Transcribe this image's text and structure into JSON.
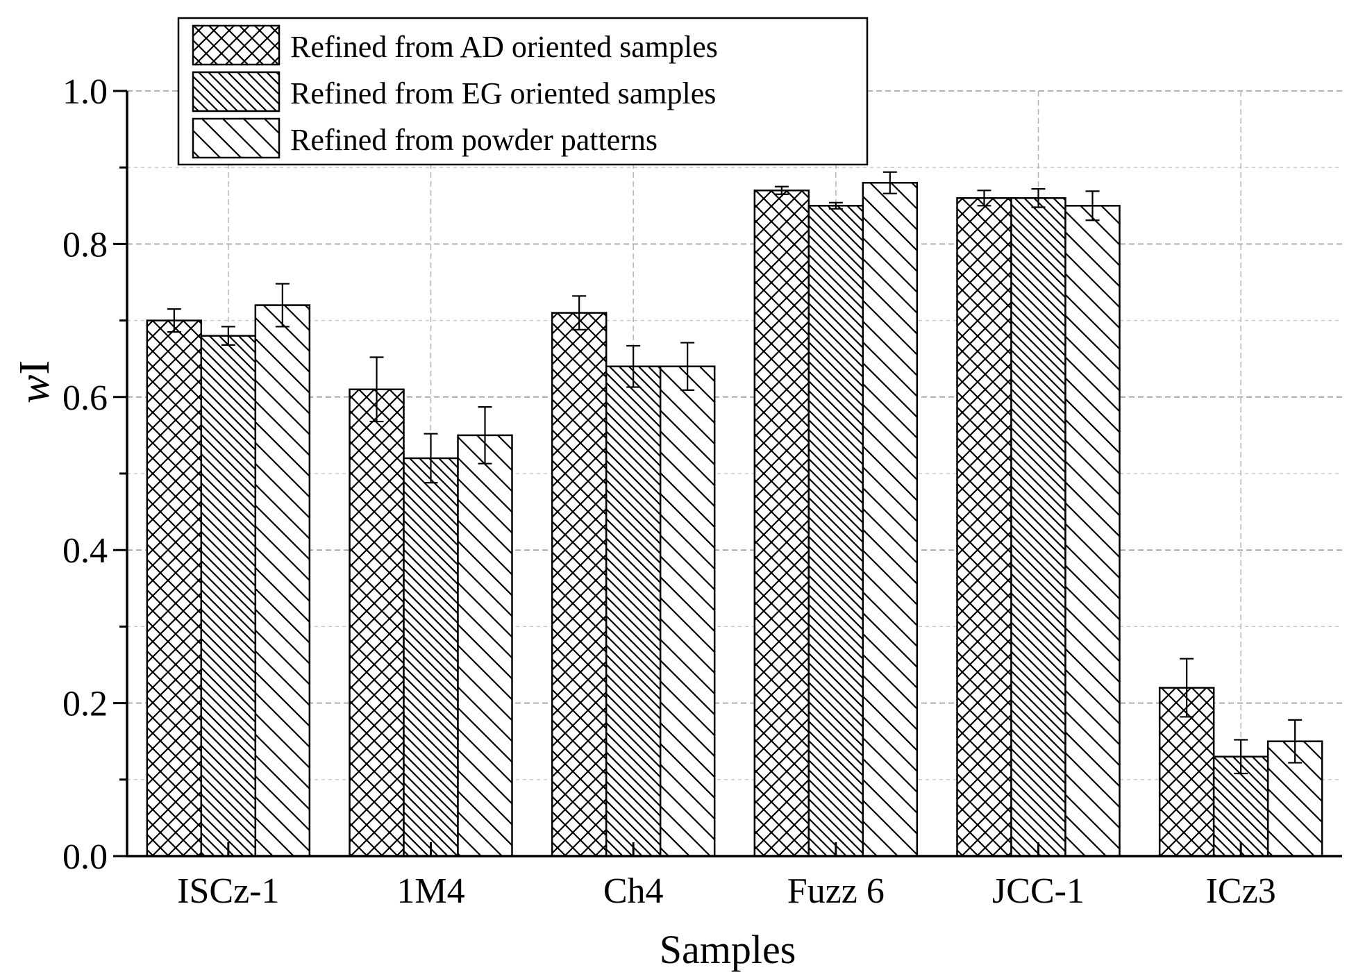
{
  "chart_data": {
    "type": "bar",
    "xlabel": "Samples",
    "ylabel_italic": "w",
    "ylabel_roman": "I",
    "ylim": [
      0,
      1.0
    ],
    "yticks": [
      0.0,
      0.2,
      0.4,
      0.6,
      0.8,
      1.0
    ],
    "ytick_labels": [
      "0.0",
      "0.2",
      "0.4",
      "0.6",
      "0.8",
      "1.0"
    ],
    "grid": true,
    "legend_position": "top-left",
    "categories": [
      "ISCz-1",
      "1M4",
      "Ch4",
      "Fuzz 6",
      "JCC-1",
      "ICz3"
    ],
    "series": [
      {
        "name": "Refined from AD oriented samples",
        "pattern": "crosshatch",
        "values": [
          0.7,
          0.61,
          0.71,
          0.87,
          0.86,
          0.22
        ],
        "errors": [
          0.015,
          0.042,
          0.022,
          0.005,
          0.01,
          0.038
        ]
      },
      {
        "name": "Refined from EG oriented samples",
        "pattern": "dense-diagonal",
        "values": [
          0.68,
          0.52,
          0.64,
          0.85,
          0.86,
          0.13
        ],
        "errors": [
          0.012,
          0.032,
          0.027,
          0.004,
          0.012,
          0.022
        ]
      },
      {
        "name": "Refined from powder patterns",
        "pattern": "sparse-diagonal",
        "values": [
          0.72,
          0.55,
          0.64,
          0.88,
          0.85,
          0.15
        ],
        "errors": [
          0.028,
          0.037,
          0.031,
          0.014,
          0.019,
          0.028
        ]
      }
    ]
  }
}
